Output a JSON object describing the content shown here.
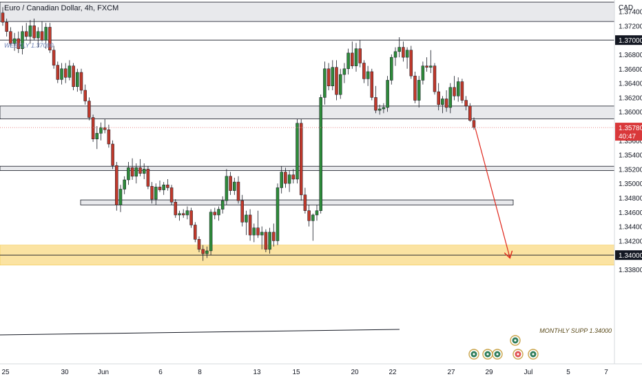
{
  "header": {
    "symbol_title": "Euro / Canadian Dollar, 4h, FXCM",
    "currency": "CAD"
  },
  "annotations": {
    "weekly_label": "WEEKLY 1.37000",
    "monthly_label": "MONTHLY SUPP 1.34000"
  },
  "price_badges": {
    "level_1_37": "1.37000",
    "level_1_34": "1.34000",
    "last_price": "1.35780",
    "countdown": "40:47"
  },
  "colors": {
    "up": "#26a69a",
    "up_fill": "#2e8b3a",
    "down": "#c0392b",
    "zone_fill": "#e8e9ec",
    "monthly_fill": "#fbe3a2",
    "arrow": "#e0261b",
    "last_price": "#d9383a"
  },
  "chart_data": {
    "type": "candlestick",
    "timeframe": "4h",
    "ylim": [
      1.337,
      1.375
    ],
    "y_ticks": [
      "1.37400",
      "1.37200",
      "1.37000",
      "1.36800",
      "1.36600",
      "1.36400",
      "1.36200",
      "1.36000",
      "1.35800",
      "1.35600",
      "1.35400",
      "1.35200",
      "1.35000",
      "1.34800",
      "1.34600",
      "1.34400",
      "1.34200",
      "1.34000",
      "1.33800"
    ],
    "x_tick_labels": [
      "25",
      "30",
      "Jun",
      "6",
      "8",
      "13",
      "15",
      "20",
      "22",
      "27",
      "29",
      "Jul",
      "5",
      "7"
    ],
    "zones": [
      {
        "name": "top-zone",
        "low": 1.3726,
        "high": 1.3753
      },
      {
        "name": "upper-zone",
        "low": 1.359,
        "high": 1.3608
      },
      {
        "name": "middle-zone",
        "low": 1.3518,
        "high": 1.3524
      },
      {
        "name": "lower-zone",
        "low": 1.347,
        "high": 1.3477
      },
      {
        "name": "monthly-support-zone",
        "low": 1.3386,
        "high": 1.3414
      }
    ],
    "horizontal_levels": [
      1.37,
      1.34
    ],
    "last_price": 1.3578,
    "projection": {
      "from": 1.3577,
      "to": 1.3397
    },
    "candles_ohlc": [
      [
        1.3738,
        1.3746,
        1.372,
        1.3725
      ],
      [
        1.3725,
        1.373,
        1.3705,
        1.3712
      ],
      [
        1.3712,
        1.3718,
        1.369,
        1.3695
      ],
      [
        1.3695,
        1.371,
        1.3685,
        1.3702
      ],
      [
        1.3702,
        1.3712,
        1.3682,
        1.3688
      ],
      [
        1.3688,
        1.372,
        1.368,
        1.3712
      ],
      [
        1.3712,
        1.3724,
        1.37,
        1.3705
      ],
      [
        1.3705,
        1.3728,
        1.3695,
        1.372
      ],
      [
        1.372,
        1.373,
        1.37,
        1.3703
      ],
      [
        1.3703,
        1.3718,
        1.369,
        1.3712
      ],
      [
        1.3712,
        1.3726,
        1.3698,
        1.37
      ],
      [
        1.37,
        1.3724,
        1.3688,
        1.3718
      ],
      [
        1.3718,
        1.3724,
        1.3682,
        1.3686
      ],
      [
        1.3686,
        1.3692,
        1.366,
        1.3665
      ],
      [
        1.3665,
        1.367,
        1.364,
        1.3645
      ],
      [
        1.3645,
        1.3668,
        1.3638,
        1.366
      ],
      [
        1.366,
        1.3668,
        1.364,
        1.3648
      ],
      [
        1.3648,
        1.3672,
        1.3644,
        1.3664
      ],
      [
        1.3664,
        1.3668,
        1.363,
        1.3635
      ],
      [
        1.3635,
        1.366,
        1.3628,
        1.3655
      ],
      [
        1.3655,
        1.366,
        1.3625,
        1.363
      ],
      [
        1.363,
        1.3638,
        1.361,
        1.3615
      ],
      [
        1.3615,
        1.362,
        1.3588,
        1.3592
      ],
      [
        1.3592,
        1.3596,
        1.3558,
        1.3562
      ],
      [
        1.3562,
        1.358,
        1.3548,
        1.357
      ],
      [
        1.357,
        1.3585,
        1.356,
        1.3578
      ],
      [
        1.3578,
        1.359,
        1.357,
        1.3575
      ],
      [
        1.3575,
        1.3582,
        1.355,
        1.3555
      ],
      [
        1.3555,
        1.356,
        1.352,
        1.3525
      ],
      [
        1.3525,
        1.353,
        1.3462,
        1.347
      ],
      [
        1.347,
        1.3498,
        1.346,
        1.3492
      ],
      [
        1.3492,
        1.351,
        1.3485,
        1.3505
      ],
      [
        1.3505,
        1.353,
        1.3498,
        1.3522
      ],
      [
        1.3522,
        1.3535,
        1.3505,
        1.351
      ],
      [
        1.351,
        1.3528,
        1.35,
        1.3522
      ],
      [
        1.3522,
        1.3534,
        1.351,
        1.3514
      ],
      [
        1.3514,
        1.3528,
        1.3506,
        1.352
      ],
      [
        1.352,
        1.3524,
        1.3492,
        1.3496
      ],
      [
        1.3496,
        1.3502,
        1.3472,
        1.3478
      ],
      [
        1.3478,
        1.35,
        1.347,
        1.3495
      ],
      [
        1.3495,
        1.3504,
        1.3488,
        1.3491
      ],
      [
        1.3491,
        1.3502,
        1.3484,
        1.3498
      ],
      [
        1.3498,
        1.3506,
        1.349,
        1.3494
      ],
      [
        1.3494,
        1.3498,
        1.347,
        1.3474
      ],
      [
        1.3474,
        1.3478,
        1.3452,
        1.3456
      ],
      [
        1.3456,
        1.3462,
        1.3448,
        1.3458
      ],
      [
        1.3458,
        1.3464,
        1.3452,
        1.3456
      ],
      [
        1.3456,
        1.3468,
        1.345,
        1.3462
      ],
      [
        1.3462,
        1.3466,
        1.3438,
        1.3442
      ],
      [
        1.3442,
        1.3446,
        1.3418,
        1.3422
      ],
      [
        1.3422,
        1.3426,
        1.3404,
        1.3408
      ],
      [
        1.3408,
        1.3414,
        1.3392,
        1.3402
      ],
      [
        1.3402,
        1.3412,
        1.3396,
        1.3406
      ],
      [
        1.3406,
        1.3464,
        1.34,
        1.346
      ],
      [
        1.346,
        1.3466,
        1.345,
        1.3456
      ],
      [
        1.3456,
        1.3468,
        1.3448,
        1.3464
      ],
      [
        1.3464,
        1.3482,
        1.3458,
        1.3476
      ],
      [
        1.3476,
        1.352,
        1.347,
        1.351
      ],
      [
        1.351,
        1.3516,
        1.3484,
        1.349
      ],
      [
        1.349,
        1.3508,
        1.3484,
        1.3502
      ],
      [
        1.3502,
        1.351,
        1.3472,
        1.3476
      ],
      [
        1.3476,
        1.3484,
        1.344,
        1.3446
      ],
      [
        1.3446,
        1.3462,
        1.3428,
        1.3456
      ],
      [
        1.3456,
        1.3464,
        1.342,
        1.3428
      ],
      [
        1.3428,
        1.3444,
        1.3418,
        1.3438
      ],
      [
        1.3438,
        1.3462,
        1.3424,
        1.3428
      ],
      [
        1.3428,
        1.344,
        1.3408,
        1.3432
      ],
      [
        1.3432,
        1.3436,
        1.3404,
        1.3408
      ],
      [
        1.3408,
        1.3438,
        1.3402,
        1.3432
      ],
      [
        1.3432,
        1.3444,
        1.3412,
        1.342
      ],
      [
        1.342,
        1.35,
        1.3414,
        1.3494
      ],
      [
        1.3494,
        1.3524,
        1.3486,
        1.3516
      ],
      [
        1.3516,
        1.3522,
        1.3494,
        1.35
      ],
      [
        1.35,
        1.3518,
        1.3488,
        1.3512
      ],
      [
        1.3512,
        1.352,
        1.35,
        1.3506
      ],
      [
        1.3506,
        1.359,
        1.35,
        1.3584
      ],
      [
        1.3584,
        1.359,
        1.3476,
        1.3484
      ],
      [
        1.3484,
        1.3494,
        1.3458,
        1.3462
      ],
      [
        1.3462,
        1.347,
        1.344,
        1.3448
      ],
      [
        1.3448,
        1.3458,
        1.342,
        1.3456
      ],
      [
        1.3456,
        1.347,
        1.3448,
        1.3462
      ],
      [
        1.3462,
        1.3624,
        1.3458,
        1.362
      ],
      [
        1.362,
        1.367,
        1.361,
        1.366
      ],
      [
        1.366,
        1.3668,
        1.363,
        1.3636
      ],
      [
        1.3636,
        1.3672,
        1.363,
        1.3662
      ],
      [
        1.3662,
        1.3672,
        1.3616,
        1.3624
      ],
      [
        1.3624,
        1.366,
        1.3618,
        1.3652
      ],
      [
        1.3652,
        1.3668,
        1.364,
        1.366
      ],
      [
        1.366,
        1.3688,
        1.3652,
        1.3682
      ],
      [
        1.3682,
        1.3698,
        1.366,
        1.3664
      ],
      [
        1.3664,
        1.3696,
        1.3656,
        1.3688
      ],
      [
        1.3688,
        1.37,
        1.3662,
        1.3668
      ],
      [
        1.3668,
        1.3672,
        1.364,
        1.3646
      ],
      [
        1.3646,
        1.3664,
        1.3636,
        1.3656
      ],
      [
        1.3656,
        1.366,
        1.3616,
        1.362
      ],
      [
        1.362,
        1.3636,
        1.3598,
        1.3602
      ],
      [
        1.3602,
        1.361,
        1.3596,
        1.3604
      ],
      [
        1.3604,
        1.3612,
        1.3598,
        1.3606
      ],
      [
        1.3606,
        1.365,
        1.36,
        1.3644
      ],
      [
        1.3644,
        1.368,
        1.3638,
        1.3676
      ],
      [
        1.3676,
        1.369,
        1.3664,
        1.3684
      ],
      [
        1.3684,
        1.3704,
        1.3676,
        1.369
      ],
      [
        1.369,
        1.3698,
        1.367,
        1.3676
      ],
      [
        1.3676,
        1.369,
        1.366,
        1.3686
      ],
      [
        1.3686,
        1.3692,
        1.3646,
        1.365
      ],
      [
        1.365,
        1.3656,
        1.3612,
        1.3616
      ],
      [
        1.3616,
        1.365,
        1.3606,
        1.3644
      ],
      [
        1.3644,
        1.367,
        1.3638,
        1.3664
      ],
      [
        1.3664,
        1.3676,
        1.3656,
        1.3662
      ],
      [
        1.3662,
        1.3686,
        1.3654,
        1.3664
      ],
      [
        1.3664,
        1.3668,
        1.3624,
        1.3628
      ],
      [
        1.3628,
        1.364,
        1.3602,
        1.361
      ],
      [
        1.361,
        1.3622,
        1.3598,
        1.3618
      ],
      [
        1.3618,
        1.363,
        1.36,
        1.3606
      ],
      [
        1.3606,
        1.364,
        1.3598,
        1.3634
      ],
      [
        1.3634,
        1.365,
        1.3616,
        1.3622
      ],
      [
        1.3622,
        1.3648,
        1.3614,
        1.3642
      ],
      [
        1.3642,
        1.3646,
        1.3612,
        1.3616
      ],
      [
        1.3616,
        1.3622,
        1.3602,
        1.3608
      ],
      [
        1.3608,
        1.3612,
        1.3586,
        1.3588
      ],
      [
        1.3588,
        1.3592,
        1.3575,
        1.3578
      ]
    ]
  }
}
